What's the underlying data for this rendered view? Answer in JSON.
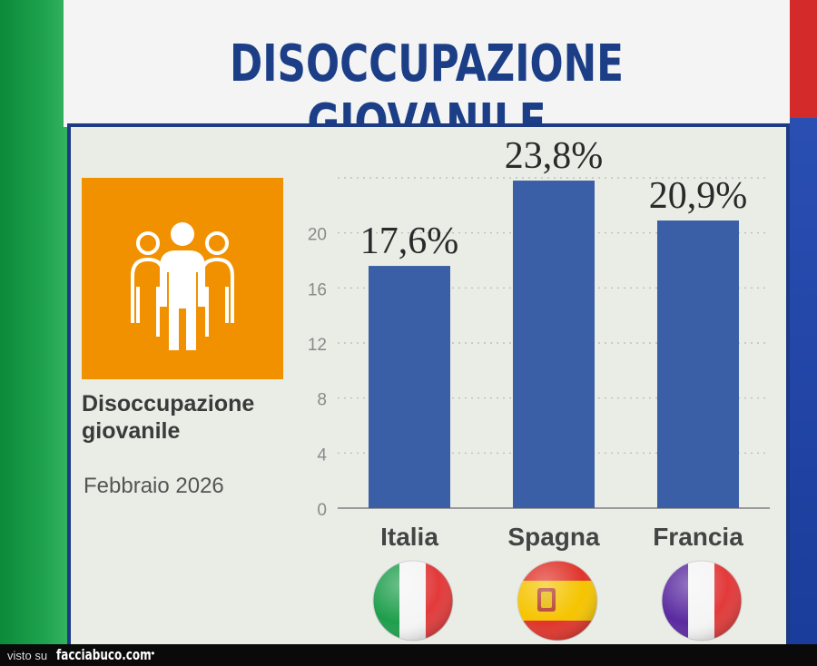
{
  "title": "DISOCCUPAZIONE GIOVANILE",
  "side_card": {
    "icon": "people-group-icon",
    "label_line1": "Disoccupazione",
    "label_line2": "giovanile",
    "date": "Febbraio 2026"
  },
  "colors": {
    "bar": "#3a5fa6",
    "orange": "#f29100",
    "title": "#1b3e86",
    "panel": "#eaece6"
  },
  "chart_data": {
    "type": "bar",
    "categories": [
      "Italia",
      "Spagna",
      "Francia"
    ],
    "values": [
      17.6,
      23.8,
      20.9
    ],
    "data_labels": [
      "17,6%",
      "23,8%",
      "20,9%"
    ],
    "y_ticks": [
      0,
      4,
      8,
      12,
      16,
      20
    ],
    "ylim": [
      0,
      24
    ],
    "grid": true,
    "flags": [
      "italy-flag-icon",
      "spain-flag-icon",
      "france-flag-icon"
    ]
  },
  "footer": {
    "visto_su": "visto su",
    "brand": "facciabuco.com",
    "eyes": "••"
  }
}
